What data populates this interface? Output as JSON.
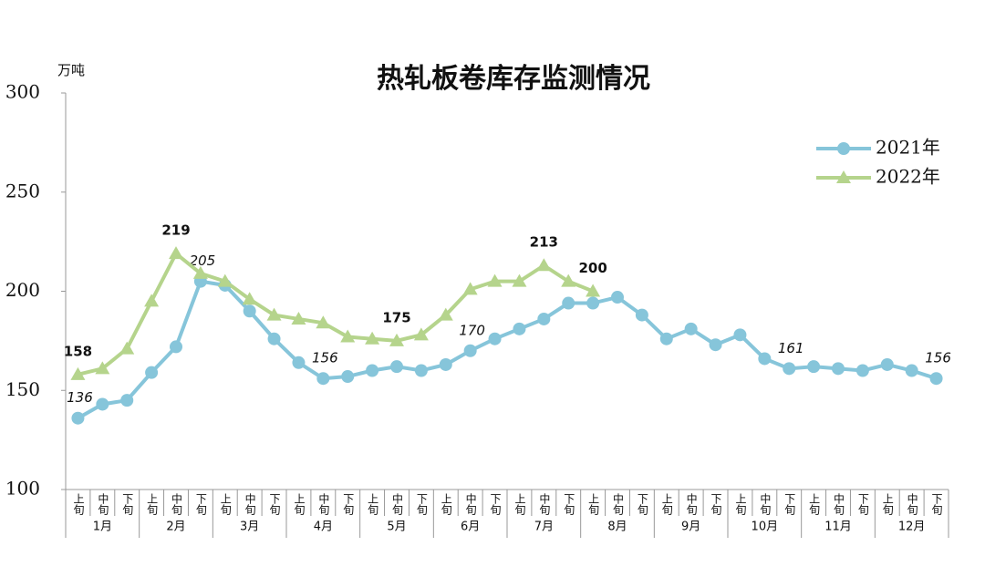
{
  "chart_data": {
    "type": "line",
    "title": "热轧板卷库存监测情况",
    "y_label": "万吨",
    "categories": [
      "上旬",
      "中旬",
      "下旬",
      "上旬",
      "中旬",
      "下旬",
      "上旬",
      "中旬",
      "下旬",
      "上旬",
      "中旬",
      "下旬",
      "上旬",
      "中旬",
      "下旬",
      "上旬",
      "中旬",
      "下旬",
      "上旬",
      "中旬",
      "下旬",
      "上旬",
      "中旬",
      "下旬",
      "上旬",
      "中旬",
      "下旬",
      "上旬",
      "中旬",
      "下旬",
      "上旬",
      "中旬",
      "下旬",
      "上旬",
      "中旬",
      "下旬"
    ],
    "groups": [
      "1月",
      "2月",
      "3月",
      "4月",
      "5月",
      "6月",
      "7月",
      "8月",
      "9月",
      "10月",
      "11月",
      "12月"
    ],
    "series": [
      {
        "name": "2021年",
        "color": "#86c5da",
        "marker": "circle",
        "values": [
          136,
          143,
          145,
          159,
          172,
          205,
          203,
          190,
          176,
          164,
          156,
          157,
          160,
          162,
          160,
          163,
          170,
          176,
          181,
          186,
          194,
          194,
          197,
          188,
          176,
          181,
          173,
          178,
          166,
          161,
          162,
          161,
          160,
          163,
          160,
          156
        ],
        "value_labels": [
          "136",
          null,
          null,
          null,
          null,
          "205",
          null,
          null,
          null,
          null,
          "156",
          null,
          null,
          null,
          null,
          null,
          "170",
          null,
          null,
          null,
          null,
          null,
          null,
          null,
          null,
          null,
          null,
          null,
          null,
          "161",
          null,
          null,
          null,
          null,
          null,
          "156"
        ]
      },
      {
        "name": "2022年",
        "color": "#b5d48c",
        "marker": "triangle",
        "values": [
          158,
          161,
          171,
          195,
          219,
          209,
          205,
          196,
          188,
          186,
          184,
          177,
          176,
          175,
          178,
          188,
          201,
          205,
          205,
          213,
          205,
          200,
          null,
          null,
          null,
          null,
          null,
          null,
          null,
          null,
          null,
          null,
          null,
          null,
          null,
          null
        ],
        "value_labels": [
          "158",
          null,
          null,
          null,
          "219",
          null,
          null,
          null,
          null,
          null,
          null,
          null,
          null,
          "175",
          null,
          null,
          null,
          null,
          null,
          "213",
          null,
          "200",
          null,
          null,
          null,
          null,
          null,
          null,
          null,
          null,
          null,
          null,
          null,
          null,
          null,
          null
        ]
      }
    ],
    "ylim": [
      100,
      300
    ],
    "yticks": [
      100,
      150,
      200,
      250,
      300
    ],
    "grid": false,
    "legend": "upper right"
  }
}
